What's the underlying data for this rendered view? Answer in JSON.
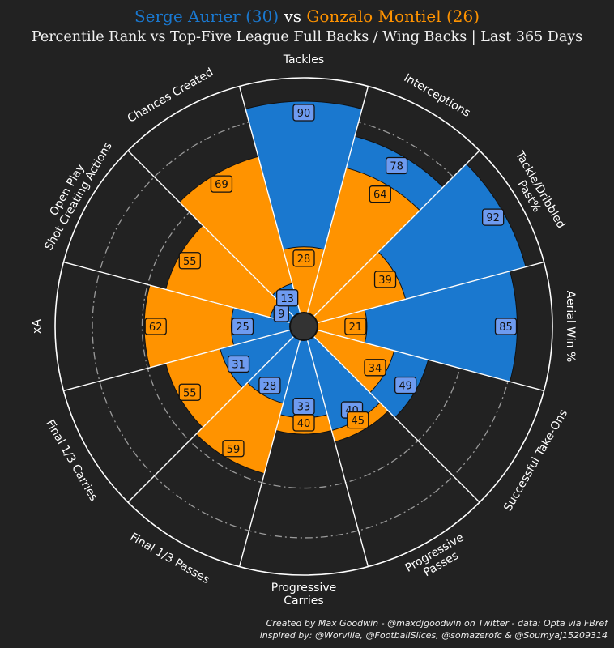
{
  "title": {
    "player1": "Serge Aurier (30)",
    "vs": "vs",
    "player2": "Gonzalo Montiel (26)",
    "subtitle": "Percentile Rank vs Top-Five League Full Backs / Wing Backs | Last 365 Days"
  },
  "colors": {
    "player1": "#1a78cf",
    "player2": "#ff9300",
    "background": "#222222"
  },
  "chart_data": {
    "type": "radar-bar",
    "scale": [
      0,
      100
    ],
    "categories": [
      "Tackles",
      "Interceptions",
      "Tackle/Dribbled Past%",
      "Aerial Win %",
      "Successful Take-Ons",
      "Progressive Passes",
      "Progressive Carries",
      "Final 1/3 Passes",
      "Final 1/3 Carries",
      "xA",
      "Open Play Shot Creating Actions",
      "Chances Created"
    ],
    "category_label_lines": [
      [
        "Tackles"
      ],
      [
        "Interceptions"
      ],
      [
        "Tackle/Dribbled",
        "Past%"
      ],
      [
        "Aerial Win %"
      ],
      [
        "Successful Take-Ons"
      ],
      [
        "Progressive",
        "Passes"
      ],
      [
        "Progressive",
        "Carries"
      ],
      [
        "Final 1/3 Passes"
      ],
      [
        "Final 1/3 Carries"
      ],
      [
        "xA"
      ],
      [
        "Open Play",
        "Shot Creating Actions"
      ],
      [
        "Chances Created"
      ]
    ],
    "series": [
      {
        "name": "Serge Aurier",
        "values": [
          90,
          78,
          92,
          85,
          49,
          40,
          33,
          28,
          31,
          25,
          9,
          13
        ]
      },
      {
        "name": "Gonzalo Montiel",
        "values": [
          28,
          64,
          39,
          21,
          34,
          45,
          40,
          59,
          55,
          62,
          55,
          69
        ]
      }
    ]
  },
  "footer": {
    "line1": "Created by Max Goodwin - @maxdjgoodwin on Twitter - data: Opta via FBref",
    "line2": "inspired by: @Worville, @FootballSlices, @somazerofc & @Soumyaj15209314"
  }
}
